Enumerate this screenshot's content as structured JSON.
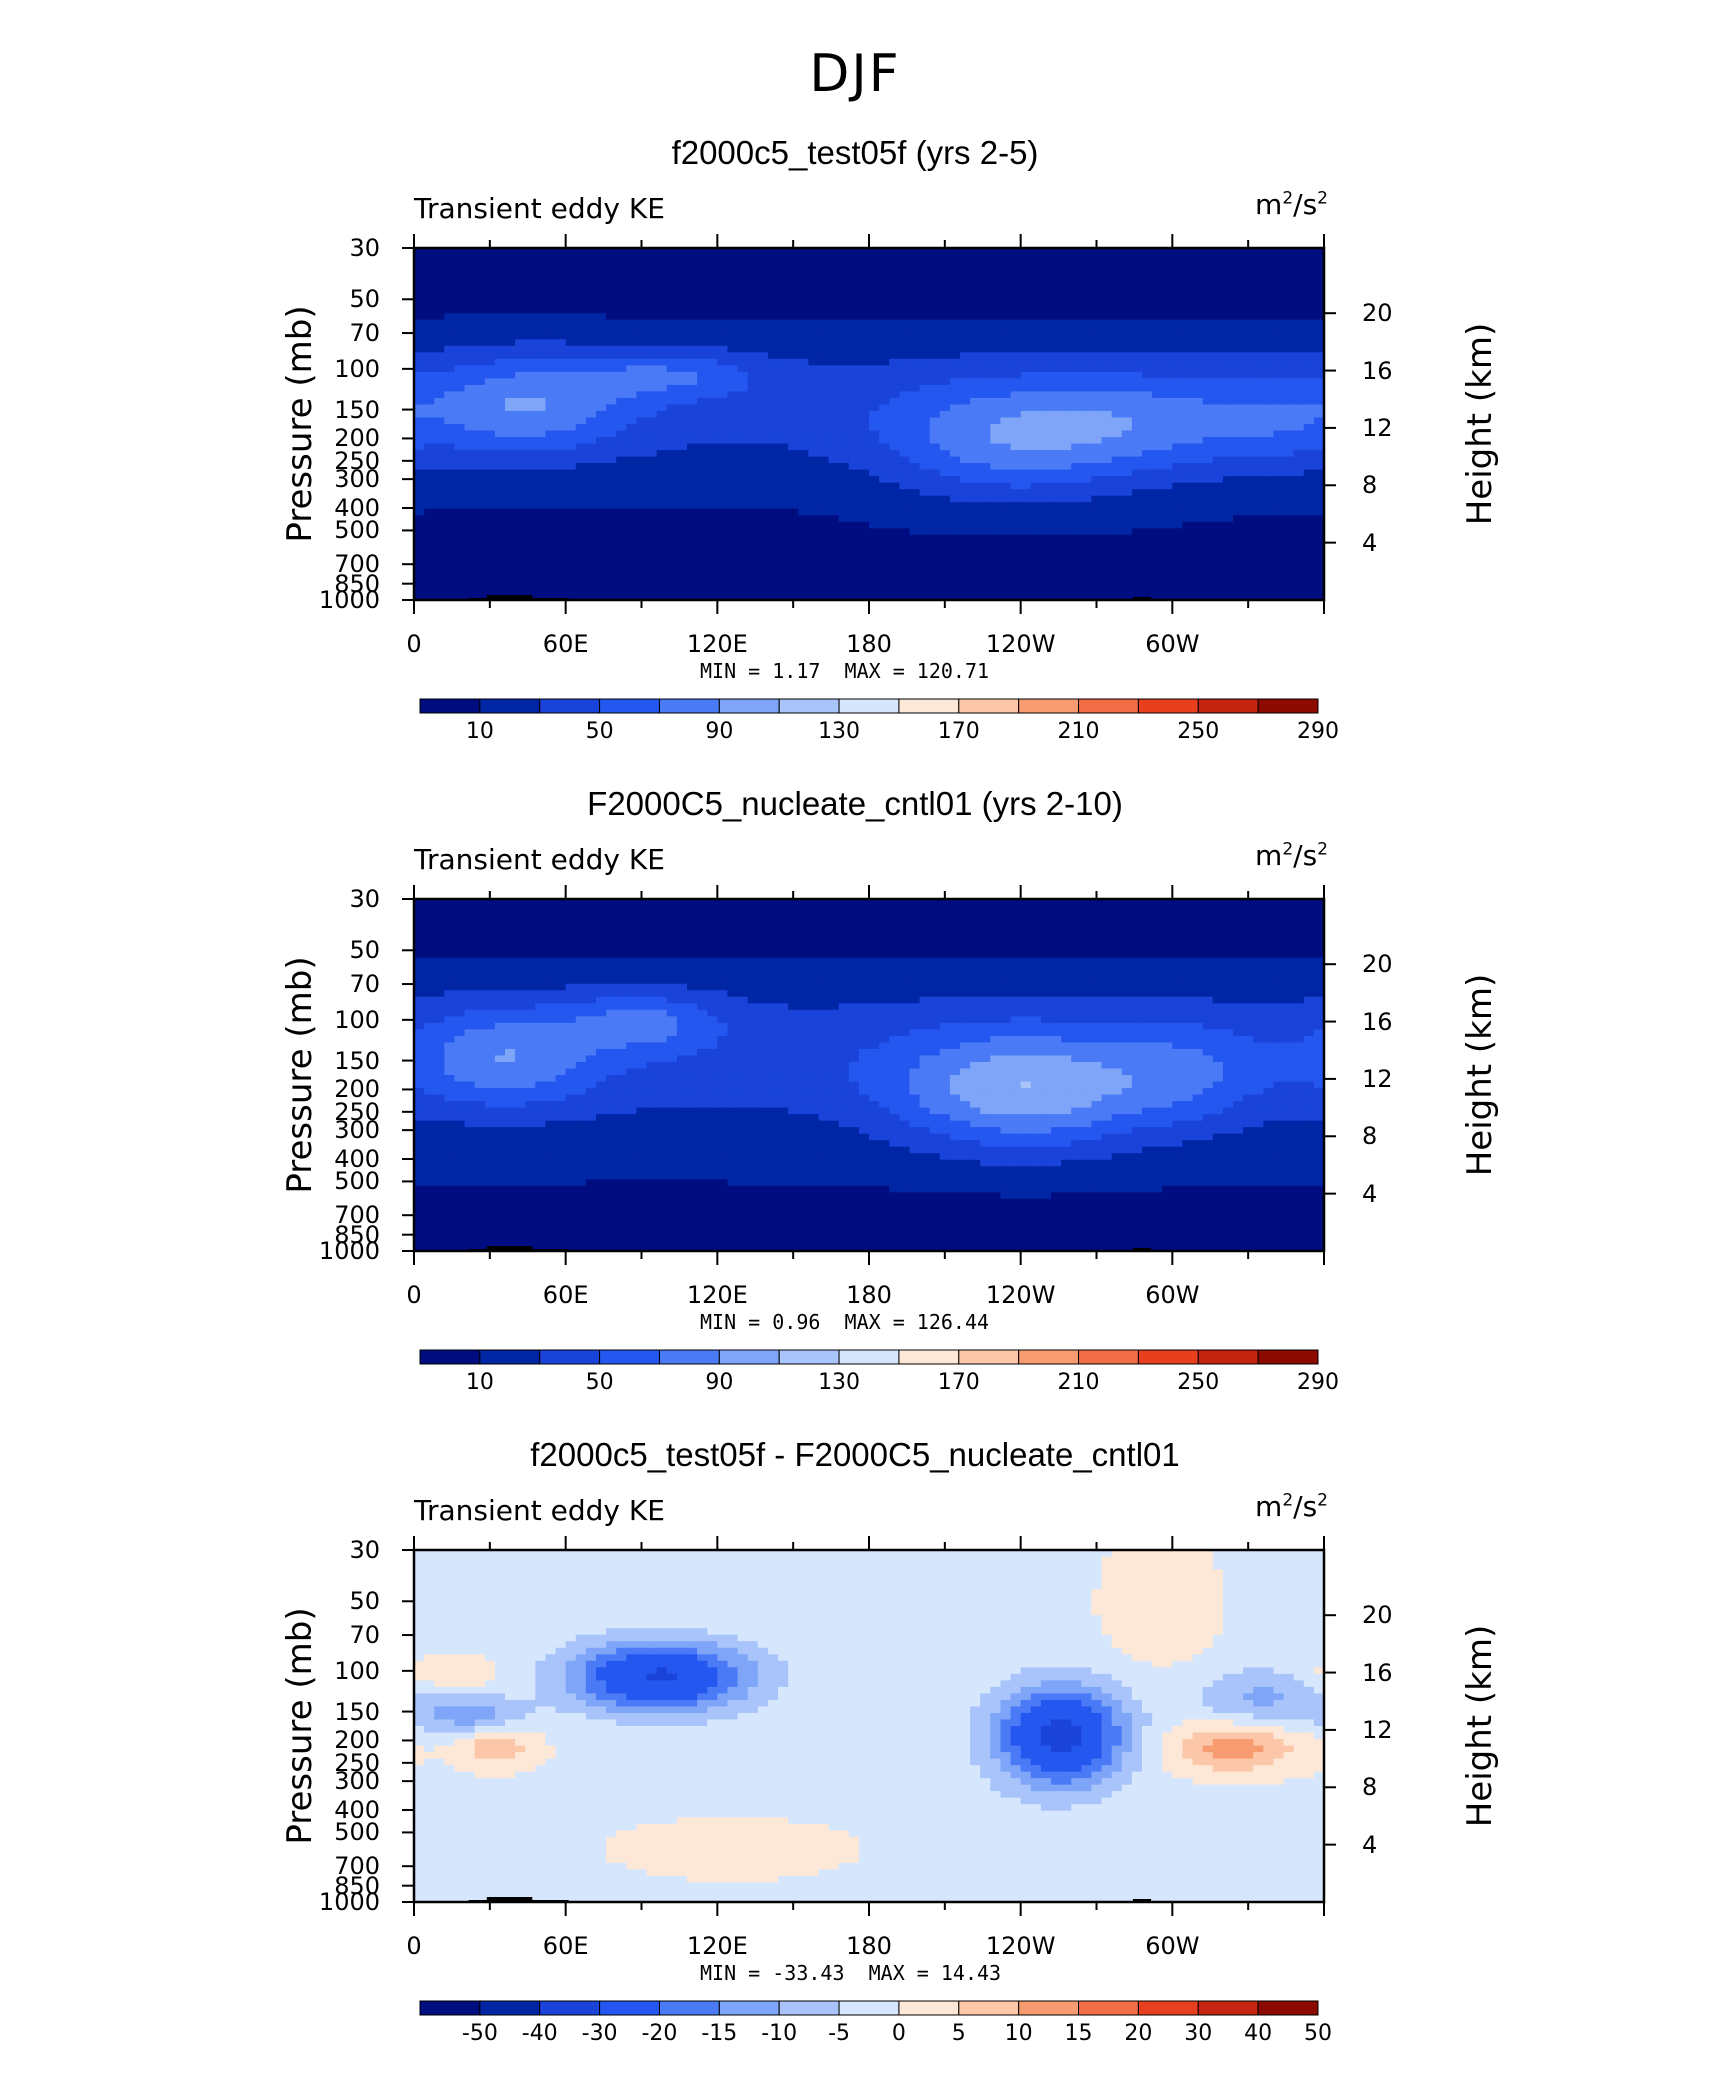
{
  "title": "DJF",
  "colors": {
    "abs_scale": [
      "#000d80",
      "#0026a6",
      "#1a43d9",
      "#2457f0",
      "#4a7af5",
      "#7ea5f7",
      "#a8c4fa",
      "#d6e6fd",
      "#fde8d8",
      "#fbc7a8",
      "#f79b70",
      "#f26d45",
      "#e8401f",
      "#c52410",
      "#8c0a00"
    ],
    "diff_scale": [
      "#000d80",
      "#0026a6",
      "#1a43d9",
      "#2457f0",
      "#4a7af5",
      "#7ea5f7",
      "#a8c4fa",
      "#d6e6fd",
      "#fde8d8",
      "#fbc7a8",
      "#f79b70",
      "#f26d45",
      "#e8401f",
      "#c52410",
      "#8c0a00"
    ]
  },
  "chart_data": [
    {
      "type": "heatmap",
      "title": "f2000c5_test05f (yrs 2-5)",
      "left_label": "Transient eddy KE",
      "units_base": "m",
      "units_sup1": "2",
      "units_mid": "/s",
      "units_sup2": "2",
      "xlabel": "",
      "ylabel": "Pressure (mb)",
      "ylabel_right": "Height (km)",
      "x_ticks": [
        "0",
        "60E",
        "120E",
        "180",
        "120W",
        "60W"
      ],
      "y_ticks": [
        "30",
        "50",
        "70",
        "100",
        "150",
        "200",
        "250",
        "300",
        "400",
        "500",
        "700",
        "850",
        "1000"
      ],
      "y_right_ticks": [
        "20",
        "16",
        "12",
        "8",
        "4"
      ],
      "min_label": "MIN =",
      "min_value": "1.17",
      "max_label": "MAX =",
      "max_value": "120.71",
      "colorbar_labels": [
        "10",
        "50",
        "90",
        "130",
        "170",
        "210",
        "250",
        "290"
      ],
      "field": "abs1"
    },
    {
      "type": "heatmap",
      "title": "F2000C5_nucleate_cntl01 (yrs 2-10)",
      "left_label": "Transient eddy KE",
      "units_base": "m",
      "units_sup1": "2",
      "units_mid": "/s",
      "units_sup2": "2",
      "xlabel": "",
      "ylabel": "Pressure (mb)",
      "ylabel_right": "Height (km)",
      "x_ticks": [
        "0",
        "60E",
        "120E",
        "180",
        "120W",
        "60W"
      ],
      "y_ticks": [
        "30",
        "50",
        "70",
        "100",
        "150",
        "200",
        "250",
        "300",
        "400",
        "500",
        "700",
        "850",
        "1000"
      ],
      "y_right_ticks": [
        "20",
        "16",
        "12",
        "8",
        "4"
      ],
      "min_label": "MIN =",
      "min_value": "0.96",
      "max_label": "MAX =",
      "max_value": "126.44",
      "colorbar_labels": [
        "10",
        "50",
        "90",
        "130",
        "170",
        "210",
        "250",
        "290"
      ],
      "field": "abs2"
    },
    {
      "type": "heatmap",
      "title": "f2000c5_test05f - F2000C5_nucleate_cntl01",
      "left_label": "Transient eddy KE",
      "units_base": "m",
      "units_sup1": "2",
      "units_mid": "/s",
      "units_sup2": "2",
      "xlabel": "",
      "ylabel": "Pressure (mb)",
      "ylabel_right": "Height (km)",
      "x_ticks": [
        "0",
        "60E",
        "120E",
        "180",
        "120W",
        "60W"
      ],
      "y_ticks": [
        "30",
        "50",
        "70",
        "100",
        "150",
        "200",
        "250",
        "300",
        "400",
        "500",
        "700",
        "850",
        "1000"
      ],
      "y_right_ticks": [
        "20",
        "16",
        "12",
        "8",
        "4"
      ],
      "min_label": "MIN =",
      "min_value": "-33.43",
      "max_label": "MAX =",
      "max_value": "14.43",
      "colorbar_labels": [
        "-50",
        "-40",
        "-30",
        "-20",
        "-15",
        "-10",
        "-5",
        "0",
        "5",
        "10",
        "15",
        "20",
        "30",
        "40",
        "50"
      ],
      "field": "diff"
    }
  ]
}
